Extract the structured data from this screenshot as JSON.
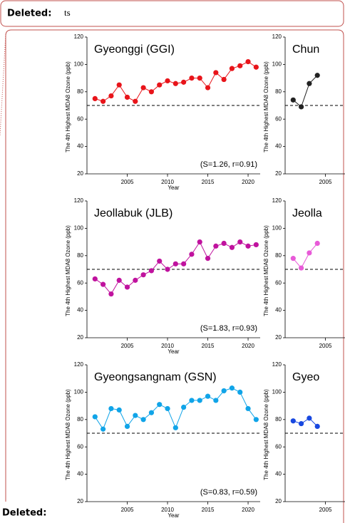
{
  "comments": [
    {
      "label": "Deleted:",
      "text": "ts"
    },
    {
      "label": "Deleted:"
    }
  ],
  "chart_data": [
    {
      "type": "line",
      "title": "Gyeonggi (GGI)",
      "annotation": "(S=1.26,  r=0.91)",
      "x_label": "Year",
      "y_label": "The 4th Highest MDA8 Ozone (ppb)",
      "x": [
        2001,
        2002,
        2003,
        2004,
        2005,
        2006,
        2007,
        2008,
        2009,
        2010,
        2011,
        2012,
        2013,
        2014,
        2015,
        2016,
        2017,
        2018,
        2019,
        2020,
        2021
      ],
      "values": [
        75,
        73,
        77,
        85,
        76,
        73,
        83,
        80,
        85,
        88,
        86,
        87,
        90,
        90,
        83,
        94,
        89,
        97,
        99,
        102,
        98
      ],
      "color": "#e8141a",
      "threshold": 70,
      "xlim": [
        2000,
        2021.5
      ],
      "xticks": [
        2005,
        2010,
        2015,
        2020
      ],
      "ylim": [
        20,
        120
      ],
      "yticks": [
        20,
        40,
        60,
        80,
        100,
        120
      ]
    },
    {
      "type": "line",
      "title": "Jeollabuk (JLB)",
      "annotation": "(S=1.83, r=0.93)",
      "x_label": "Year",
      "y_label": "The 4th Highest MDA8 Ozone (ppb)",
      "x": [
        2001,
        2002,
        2003,
        2004,
        2005,
        2006,
        2007,
        2008,
        2009,
        2010,
        2011,
        2012,
        2013,
        2014,
        2015,
        2016,
        2017,
        2018,
        2019,
        2020,
        2021
      ],
      "values": [
        63,
        59,
        52,
        62,
        57,
        62,
        66,
        69,
        76,
        70,
        74,
        74,
        81,
        90,
        78,
        87,
        89,
        86,
        90,
        87,
        88
      ],
      "color": "#c0129e",
      "threshold": 70,
      "xlim": [
        2000,
        2021.5
      ],
      "xticks": [
        2005,
        2010,
        2015,
        2020
      ],
      "ylim": [
        20,
        120
      ],
      "yticks": [
        20,
        40,
        60,
        80,
        100,
        120
      ]
    },
    {
      "type": "line",
      "title": "Gyeongsangnam (GSN)",
      "annotation": "(S=0.83,  r=0.59)",
      "x_label": "Year",
      "y_label": "The 4th Highest MDA8 Ozone (ppb)",
      "x": [
        2001,
        2002,
        2003,
        2004,
        2005,
        2006,
        2007,
        2008,
        2009,
        2010,
        2011,
        2012,
        2013,
        2014,
        2015,
        2016,
        2017,
        2018,
        2019,
        2020,
        2021
      ],
      "values": [
        82,
        73,
        88,
        87,
        75,
        83,
        80,
        85,
        91,
        88,
        74,
        89,
        94,
        94,
        97,
        94,
        101,
        103,
        100,
        88,
        80
      ],
      "color": "#10a4e8",
      "threshold": 70,
      "xlim": [
        2000,
        2021.5
      ],
      "xticks": [
        2005,
        2010,
        2015,
        2020
      ],
      "ylim": [
        20,
        120
      ],
      "yticks": [
        20,
        40,
        60,
        80,
        100,
        120
      ]
    },
    {
      "type": "line",
      "title": "Chun",
      "y_label": "The 4th Highest MDA8 Ozone (ppb)",
      "x": [
        2001,
        2002,
        2003,
        2004
      ],
      "values": [
        74,
        69,
        86,
        92
      ],
      "color": "#222222",
      "threshold": 70,
      "xlim": [
        2000,
        2021.5
      ],
      "xticks": [
        2005
      ],
      "ylim": [
        20,
        120
      ],
      "yticks": [
        20,
        40,
        60,
        80,
        100,
        120
      ]
    },
    {
      "type": "line",
      "title": "Jeolla",
      "y_label": "The 4th Highest MDA8 Ozone (ppb)",
      "x": [
        2001,
        2002,
        2003,
        2004
      ],
      "values": [
        78,
        71,
        82,
        89
      ],
      "color": "#e85ad8",
      "threshold": 70,
      "xlim": [
        2000,
        2021.5
      ],
      "xticks": [
        2005
      ],
      "ylim": [
        20,
        120
      ],
      "yticks": [
        20,
        40,
        60,
        80,
        100,
        120
      ]
    },
    {
      "type": "line",
      "title": "Gyeo",
      "y_label": "The 4th Highest MDA8 Ozone (ppb)",
      "x": [
        2001,
        2002,
        2003,
        2004
      ],
      "values": [
        79,
        77,
        81,
        75
      ],
      "color": "#1848e0",
      "threshold": 70,
      "xlim": [
        2000,
        2021.5
      ],
      "xticks": [
        2005
      ],
      "ylim": [
        20,
        120
      ],
      "yticks": [
        20,
        40,
        60,
        80,
        100,
        120
      ]
    }
  ]
}
